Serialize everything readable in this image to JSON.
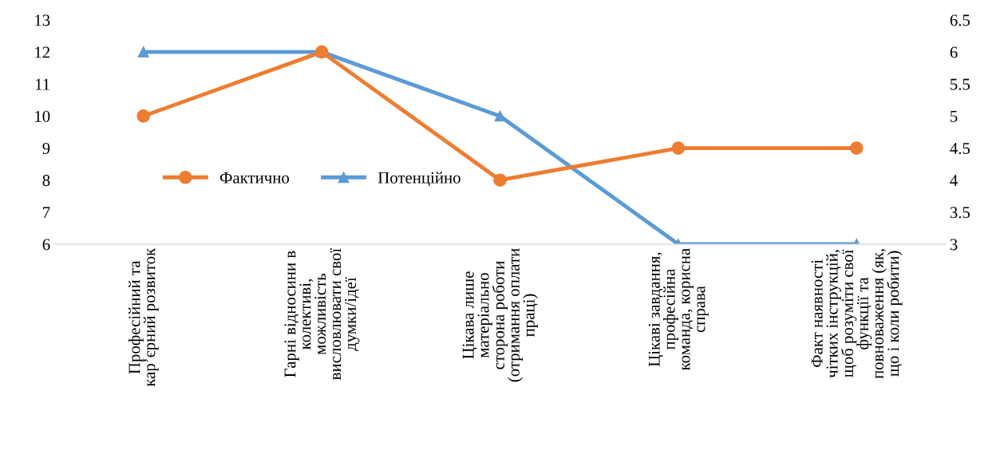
{
  "chart_data": {
    "type": "line",
    "categories": [
      "Професійний та кар’єрний розвиток",
      "Гарні відносини в колективі, можливість висловлювати свої думки/ідеї",
      "Цікава лише матеріально сторона роботи (отримання оплати праці)",
      "Цікаві завдання, професійна команда, корисна справа",
      "Факт наявності чітких інструкцій, щоб розуміти свої функції та повноваження (як, що і коли робити)"
    ],
    "series": [
      {
        "name": "Фактично",
        "color": "#ed7d31",
        "marker": "circle",
        "values": [
          10,
          12,
          8,
          9,
          9
        ]
      },
      {
        "name": "Потенційно",
        "color": "#5b9bd5",
        "marker": "triangle",
        "axis": "y2",
        "values": [
          6,
          6,
          5,
          3,
          3
        ]
      }
    ],
    "ylim": [
      6,
      13
    ],
    "yticks": [
      6,
      7,
      8,
      9,
      10,
      11,
      12,
      13
    ],
    "y2lim": [
      3,
      6.5
    ],
    "y2ticks": [
      3,
      3.5,
      4,
      4.5,
      5,
      5.5,
      6,
      6.5
    ],
    "grid": false,
    "legend": "center"
  }
}
